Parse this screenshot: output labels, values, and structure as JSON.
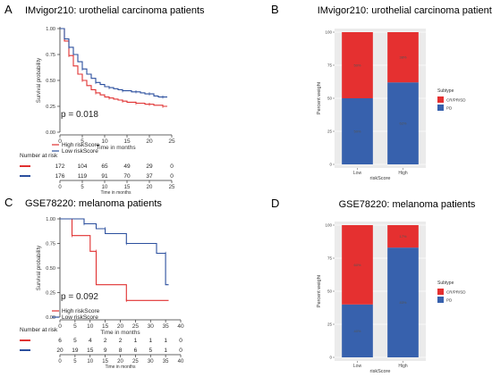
{
  "panels": {
    "A": {
      "letter": "A",
      "title": "IMvigor210: urothelial carcinoma patients"
    },
    "B": {
      "letter": "B",
      "title": "IMvigor210: urothelial carcinoma patients"
    },
    "C": {
      "letter": "C",
      "title": "GSE78220: melanoma patients"
    },
    "D": {
      "letter": "D",
      "title": "GSE78220: melanoma patients"
    }
  },
  "colors": {
    "high": "#e03131",
    "low": "#2b4f9e",
    "cr": "#e53030",
    "pd": "#3761ad"
  },
  "chart_data": [
    {
      "id": "A",
      "type": "line",
      "title": "IMvigor210: urothelial carcinoma patients",
      "xlabel": "Time in months",
      "ylabel": "Survival probability",
      "xlim": [
        0,
        25
      ],
      "ylim": [
        0,
        1
      ],
      "xticks": [
        "0",
        "5",
        "10",
        "15",
        "20",
        "25"
      ],
      "yticks": [
        "0.00",
        "0.25",
        "0.50",
        "0.75",
        "1.00"
      ],
      "pvalue": "p = 0.018",
      "legend": [
        "High riskScore",
        "Low riskScore"
      ],
      "series": [
        {
          "name": "High riskScore",
          "x": [
            0,
            1,
            2,
            3,
            4,
            5,
            6,
            7,
            8,
            9,
            10,
            11,
            12,
            13,
            14,
            15,
            16,
            17,
            18,
            19,
            20,
            21,
            22,
            23,
            24
          ],
          "y": [
            1.0,
            0.88,
            0.74,
            0.64,
            0.56,
            0.5,
            0.45,
            0.41,
            0.38,
            0.36,
            0.34,
            0.33,
            0.32,
            0.31,
            0.3,
            0.29,
            0.29,
            0.28,
            0.28,
            0.27,
            0.27,
            0.26,
            0.26,
            0.25,
            0.25
          ]
        },
        {
          "name": "Low riskScore",
          "x": [
            0,
            1,
            2,
            3,
            4,
            5,
            6,
            7,
            8,
            9,
            10,
            11,
            12,
            13,
            14,
            15,
            16,
            17,
            18,
            19,
            20,
            21,
            22,
            23,
            24
          ],
          "y": [
            1.0,
            0.9,
            0.82,
            0.75,
            0.68,
            0.61,
            0.56,
            0.52,
            0.48,
            0.46,
            0.44,
            0.43,
            0.42,
            0.41,
            0.4,
            0.4,
            0.39,
            0.39,
            0.38,
            0.37,
            0.37,
            0.35,
            0.34,
            0.34,
            0.34
          ]
        }
      ],
      "risk_table": {
        "title": "Number at risk",
        "xlabel": "Time in months",
        "times": [
          "0",
          "5",
          "10",
          "15",
          "20",
          "25"
        ],
        "rows": [
          {
            "name": "High riskScore",
            "values": [
              "172",
              "104",
              "65",
              "49",
              "29",
              "0"
            ]
          },
          {
            "name": "Low riskScore",
            "values": [
              "176",
              "119",
              "91",
              "70",
              "37",
              "0"
            ]
          }
        ]
      }
    },
    {
      "id": "B",
      "type": "bar",
      "title": "IMvigor210: urothelial carcinoma patients",
      "xlabel": "riskScore",
      "ylabel": "Percent weight",
      "categories": [
        "Low",
        "High"
      ],
      "ylim": [
        0,
        100
      ],
      "yticks": [
        "0",
        "25",
        "50",
        "75",
        "100"
      ],
      "legend_title": "Subtype",
      "series": [
        {
          "name": "PD",
          "values": [
            50,
            62
          ],
          "labels": [
            "50%",
            "62%"
          ]
        },
        {
          "name": "CR/PR/SD",
          "values": [
            50,
            38
          ],
          "labels": [
            "50%",
            "38%"
          ]
        }
      ]
    },
    {
      "id": "C",
      "type": "line",
      "title": "GSE78220: melanoma patients",
      "xlabel": "Time in months",
      "ylabel": "Survival probability",
      "xlim": [
        0,
        40
      ],
      "ylim": [
        0,
        1
      ],
      "xticks": [
        "0",
        "5",
        "10",
        "15",
        "20",
        "25",
        "30",
        "35",
        "40"
      ],
      "yticks": [
        "0.00",
        "0.25",
        "0.50",
        "0.75",
        "1.00"
      ],
      "pvalue": "p = 0.092",
      "legend": [
        "High riskScore",
        "Low riskScore"
      ],
      "series": [
        {
          "name": "High riskScore",
          "x": [
            0,
            4,
            4,
            10,
            10,
            12,
            12,
            22,
            22,
            36
          ],
          "y": [
            1.0,
            1.0,
            0.83,
            0.83,
            0.67,
            0.67,
            0.33,
            0.33,
            0.17,
            0.17
          ]
        },
        {
          "name": "Low riskScore",
          "x": [
            0,
            8,
            8,
            12,
            12,
            15,
            15,
            22,
            22,
            32,
            32,
            35,
            35,
            36
          ],
          "y": [
            1.0,
            1.0,
            0.95,
            0.95,
            0.9,
            0.9,
            0.85,
            0.85,
            0.75,
            0.75,
            0.65,
            0.65,
            0.33,
            0.33
          ]
        }
      ],
      "risk_table": {
        "title": "Number at risk",
        "xlabel": "Time in months",
        "times": [
          "0",
          "5",
          "10",
          "15",
          "20",
          "25",
          "30",
          "35",
          "40"
        ],
        "rows": [
          {
            "name": "High riskScore",
            "values": [
              "6",
              "5",
              "4",
              "2",
              "2",
              "1",
              "1",
              "1",
              "0"
            ]
          },
          {
            "name": "Low riskScore",
            "values": [
              "20",
              "19",
              "15",
              "9",
              "8",
              "6",
              "5",
              "1",
              "0"
            ]
          }
        ]
      }
    },
    {
      "id": "D",
      "type": "bar",
      "title": "GSE78220: melanoma patients",
      "xlabel": "riskScore",
      "ylabel": "Percent weight",
      "categories": [
        "Low",
        "High"
      ],
      "ylim": [
        0,
        100
      ],
      "yticks": [
        "0",
        "25",
        "50",
        "75",
        "100"
      ],
      "legend_title": "Subtype",
      "series": [
        {
          "name": "PD",
          "values": [
            40,
            83
          ],
          "labels": [
            "40%",
            "83%"
          ]
        },
        {
          "name": "CR/PR/SD",
          "values": [
            60,
            17
          ],
          "labels": [
            "60%",
            "17%"
          ]
        }
      ]
    }
  ]
}
